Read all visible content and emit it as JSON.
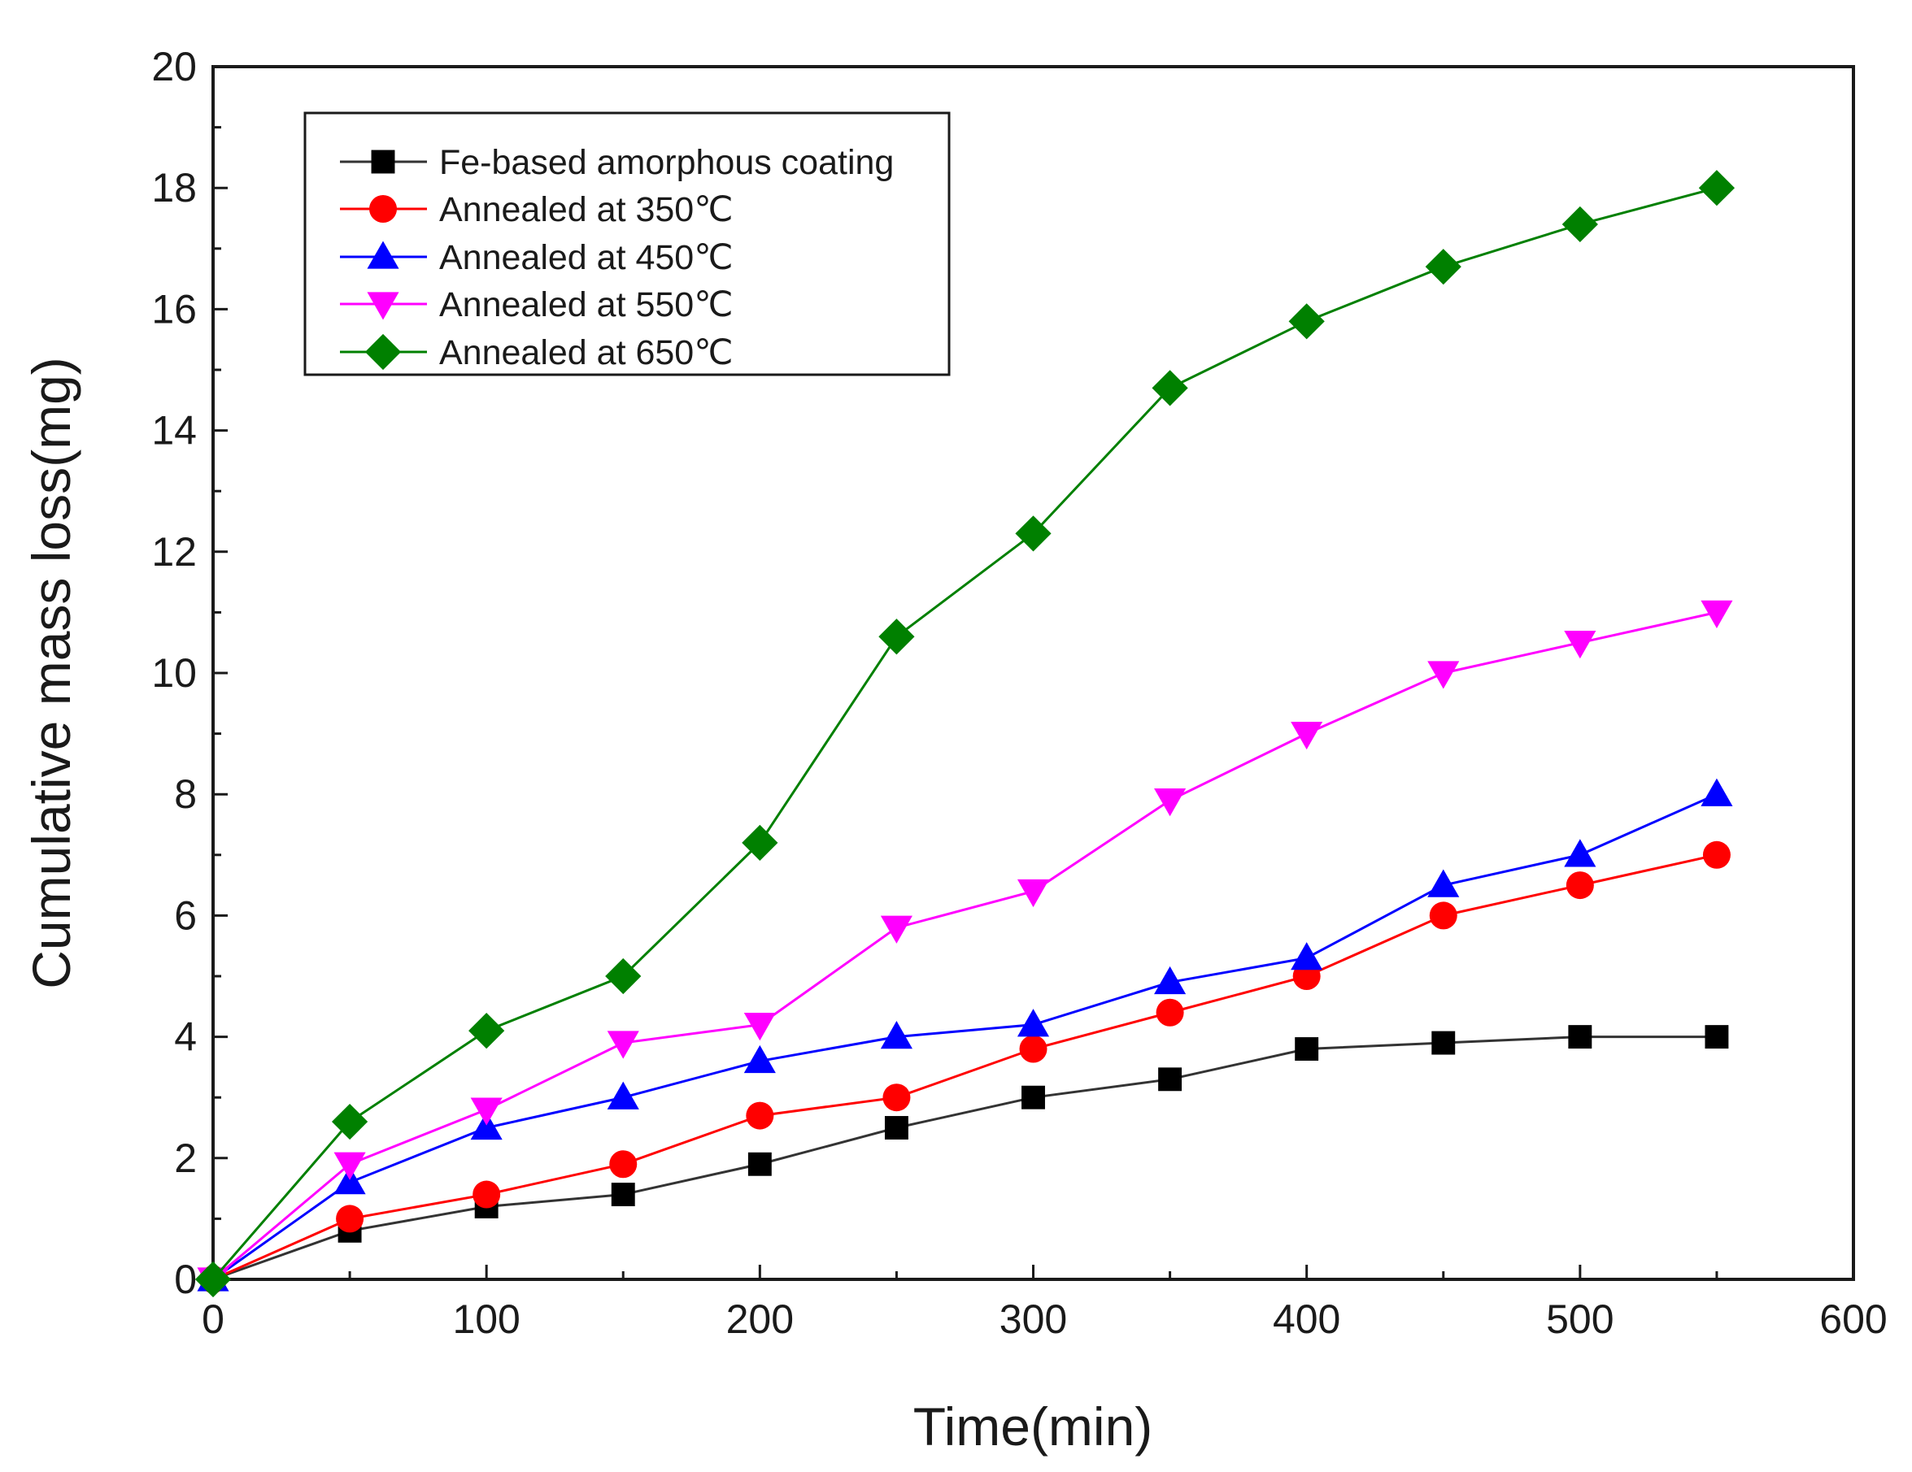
{
  "chart_data": {
    "type": "line",
    "title": "",
    "xlabel": "Time(min)",
    "ylabel": "Cumulative mass loss(mg)",
    "xlim": [
      0,
      600
    ],
    "ylim": [
      0,
      20
    ],
    "xticks": [
      0,
      100,
      200,
      300,
      400,
      500,
      600
    ],
    "yticks": [
      0,
      2,
      4,
      6,
      8,
      10,
      12,
      14,
      16,
      18,
      20
    ],
    "grid": false,
    "legend_position": "top-left",
    "x": [
      0,
      50,
      100,
      150,
      200,
      250,
      300,
      350,
      400,
      450,
      500,
      550
    ],
    "series": [
      {
        "name": "Fe-based amorphous coating",
        "marker": "square",
        "color": "#000000",
        "line_color": "#333333",
        "values": [
          0,
          0.8,
          1.2,
          1.4,
          1.9,
          2.5,
          3.0,
          3.3,
          3.8,
          3.9,
          4.0,
          4.0
        ]
      },
      {
        "name": "Annealed at 350℃",
        "marker": "circle",
        "color": "#ff0000",
        "line_color": "#ff0000",
        "values": [
          0,
          1.0,
          1.4,
          1.9,
          2.7,
          3.0,
          3.8,
          4.4,
          5.0,
          6.0,
          6.5,
          7.0
        ]
      },
      {
        "name": "Annealed at 450℃",
        "marker": "triangle-up",
        "color": "#0000ff",
        "line_color": "#0000ff",
        "values": [
          0,
          1.6,
          2.5,
          3.0,
          3.6,
          4.0,
          4.2,
          4.9,
          5.3,
          6.5,
          7.0,
          8.0
        ]
      },
      {
        "name": "Annealed at 550℃",
        "marker": "triangle-down",
        "color": "#ff00ff",
        "line_color": "#ff00ff",
        "values": [
          0,
          1.9,
          2.8,
          3.9,
          4.2,
          5.8,
          6.4,
          7.9,
          9.0,
          10.0,
          10.5,
          11.0
        ]
      },
      {
        "name": "Annealed at 650℃",
        "marker": "diamond",
        "color": "#008000",
        "line_color": "#008000",
        "values": [
          0,
          2.6,
          4.1,
          5.0,
          7.2,
          10.6,
          12.3,
          14.7,
          15.8,
          16.7,
          17.4,
          18.0
        ]
      }
    ]
  }
}
